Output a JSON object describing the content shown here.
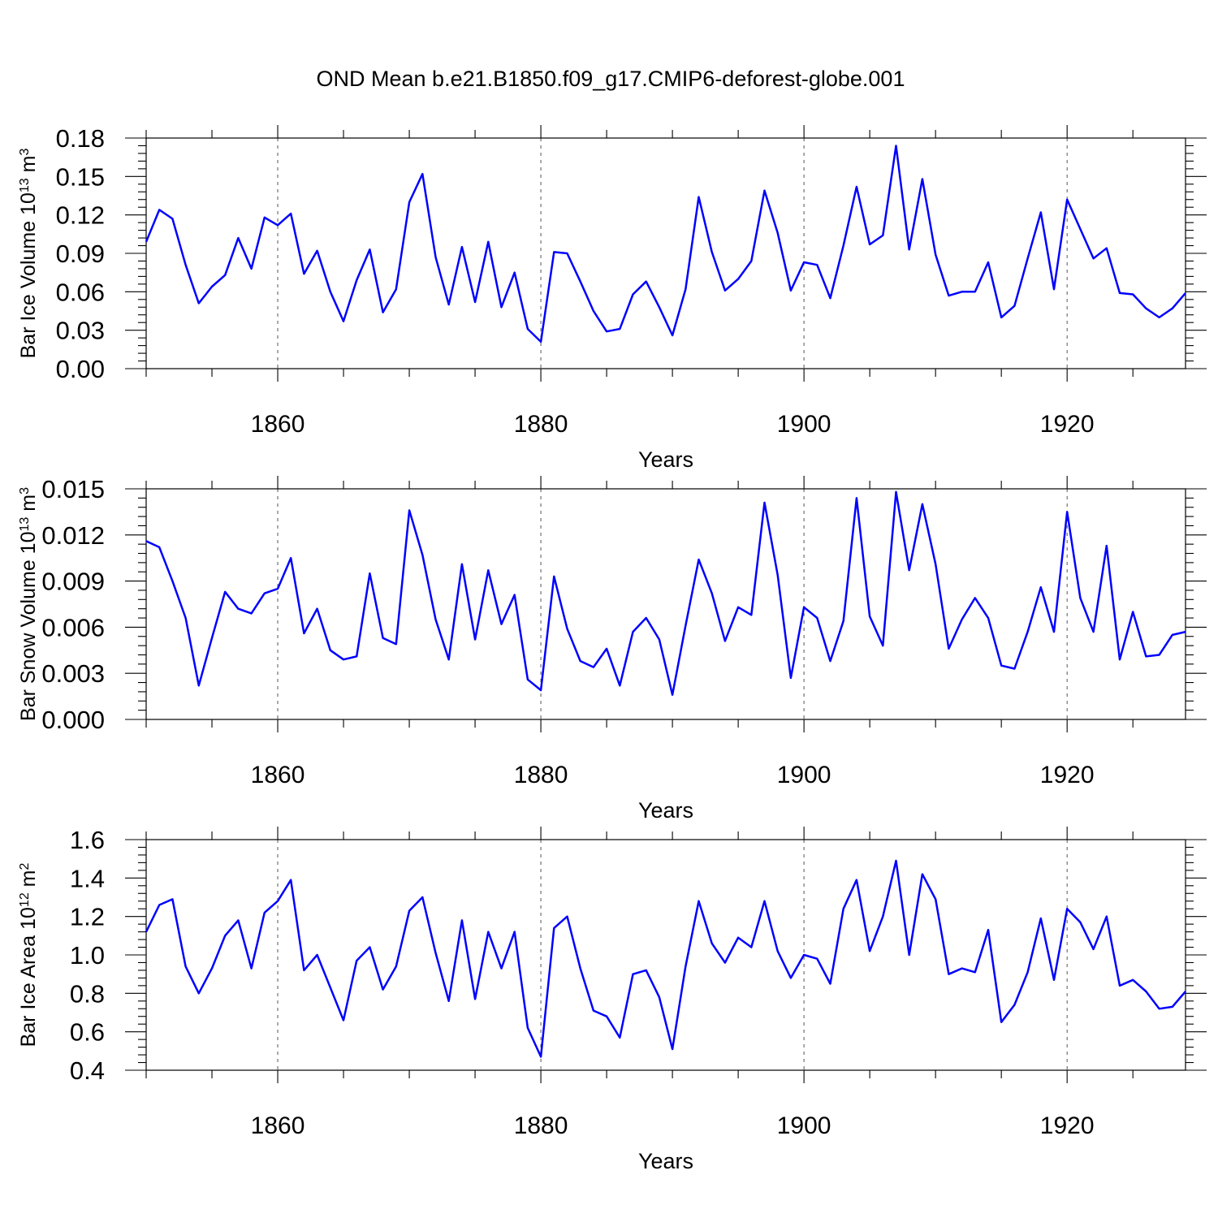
{
  "title": "OND Mean b.e21.B1850.f09_g17.CMIP6-deforest-globe.001",
  "colors": {
    "series": "#0000ff",
    "axis": "#000000",
    "grid": "#555555"
  },
  "chart_data": [
    {
      "type": "line",
      "ylabel": "Bar Ice Volume 10",
      "ylabel_exp": "13",
      "ylabel_unit": " m",
      "ylabel_unit_exp": "3",
      "xlabel": "Years",
      "xlim": [
        1850,
        1929
      ],
      "ylim": [
        0,
        0.18
      ],
      "xticks": [
        1860,
        1880,
        1900,
        1920
      ],
      "xtick_labels": [
        "1860",
        "1880",
        "1900",
        "1920"
      ],
      "yticks": [
        0,
        0.03,
        0.06,
        0.09,
        0.12,
        0.15,
        0.18
      ],
      "ytick_labels": [
        "0.00",
        "0.03",
        "0.06",
        "0.09",
        "0.12",
        "0.15",
        "0.18"
      ],
      "grid": "dashed vertical at major x ticks",
      "x": [
        1850,
        1851,
        1852,
        1853,
        1854,
        1855,
        1856,
        1857,
        1858,
        1859,
        1860,
        1861,
        1862,
        1863,
        1864,
        1865,
        1866,
        1867,
        1868,
        1869,
        1870,
        1871,
        1872,
        1873,
        1874,
        1875,
        1876,
        1877,
        1878,
        1879,
        1880,
        1881,
        1882,
        1883,
        1884,
        1885,
        1886,
        1887,
        1888,
        1889,
        1890,
        1891,
        1892,
        1893,
        1894,
        1895,
        1896,
        1897,
        1898,
        1899,
        1900,
        1901,
        1902,
        1903,
        1904,
        1905,
        1906,
        1907,
        1908,
        1909,
        1910,
        1911,
        1912,
        1913,
        1914,
        1915,
        1916,
        1917,
        1918,
        1919,
        1920,
        1921,
        1922,
        1923,
        1924,
        1925,
        1926,
        1927,
        1928,
        1929
      ],
      "values": [
        0.099,
        0.124,
        0.117,
        0.081,
        0.051,
        0.064,
        0.073,
        0.102,
        0.078,
        0.118,
        0.112,
        0.121,
        0.074,
        0.092,
        0.06,
        0.037,
        0.069,
        0.093,
        0.044,
        0.062,
        0.13,
        0.152,
        0.087,
        0.05,
        0.095,
        0.052,
        0.099,
        0.048,
        0.075,
        0.031,
        0.021,
        0.091,
        0.09,
        0.068,
        0.045,
        0.029,
        0.031,
        0.058,
        0.068,
        0.048,
        0.026,
        0.062,
        0.134,
        0.091,
        0.061,
        0.07,
        0.084,
        0.139,
        0.106,
        0.061,
        0.083,
        0.081,
        0.055,
        0.096,
        0.142,
        0.097,
        0.104,
        0.174,
        0.093,
        0.148,
        0.089,
        0.057,
        0.06,
        0.06,
        0.083,
        0.04,
        0.049,
        0.086,
        0.122,
        0.062,
        0.132,
        0.109,
        0.086,
        0.094,
        0.059,
        0.058,
        0.047,
        0.04,
        0.047,
        0.059
      ]
    },
    {
      "type": "line",
      "ylabel": "Bar Snow Volume 10",
      "ylabel_exp": "13",
      "ylabel_unit": " m",
      "ylabel_unit_exp": "3",
      "xlabel": "Years",
      "xlim": [
        1850,
        1929
      ],
      "ylim": [
        0,
        0.015
      ],
      "xticks": [
        1860,
        1880,
        1900,
        1920
      ],
      "xtick_labels": [
        "1860",
        "1880",
        "1900",
        "1920"
      ],
      "yticks": [
        0,
        0.003,
        0.006,
        0.009,
        0.012,
        0.015
      ],
      "ytick_labels": [
        "0.000",
        "0.003",
        "0.006",
        "0.009",
        "0.012",
        "0.015"
      ],
      "grid": "dashed vertical at major x ticks",
      "x": [
        1850,
        1851,
        1852,
        1853,
        1854,
        1855,
        1856,
        1857,
        1858,
        1859,
        1860,
        1861,
        1862,
        1863,
        1864,
        1865,
        1866,
        1867,
        1868,
        1869,
        1870,
        1871,
        1872,
        1873,
        1874,
        1875,
        1876,
        1877,
        1878,
        1879,
        1880,
        1881,
        1882,
        1883,
        1884,
        1885,
        1886,
        1887,
        1888,
        1889,
        1890,
        1891,
        1892,
        1893,
        1894,
        1895,
        1896,
        1897,
        1898,
        1899,
        1900,
        1901,
        1902,
        1903,
        1904,
        1905,
        1906,
        1907,
        1908,
        1909,
        1910,
        1911,
        1912,
        1913,
        1914,
        1915,
        1916,
        1917,
        1918,
        1919,
        1920,
        1921,
        1922,
        1923,
        1924,
        1925,
        1926,
        1927,
        1928,
        1929
      ],
      "values": [
        0.0116,
        0.0112,
        0.009,
        0.0066,
        0.0022,
        0.0053,
        0.0083,
        0.0072,
        0.0069,
        0.0082,
        0.0085,
        0.0105,
        0.0056,
        0.0072,
        0.0045,
        0.0039,
        0.0041,
        0.0095,
        0.0053,
        0.0049,
        0.0136,
        0.0107,
        0.0065,
        0.0039,
        0.0101,
        0.0052,
        0.0097,
        0.0062,
        0.0081,
        0.0026,
        0.0019,
        0.0093,
        0.0059,
        0.0038,
        0.0034,
        0.0046,
        0.0022,
        0.0057,
        0.0066,
        0.0052,
        0.0016,
        0.0061,
        0.0104,
        0.0082,
        0.0051,
        0.0073,
        0.0068,
        0.0141,
        0.0094,
        0.0027,
        0.0073,
        0.0066,
        0.0038,
        0.0064,
        0.0144,
        0.0067,
        0.0048,
        0.0148,
        0.0097,
        0.014,
        0.0101,
        0.0046,
        0.0065,
        0.0079,
        0.0066,
        0.0035,
        0.0033,
        0.0057,
        0.0086,
        0.0057,
        0.0135,
        0.0079,
        0.0057,
        0.0113,
        0.0039,
        0.007,
        0.0041,
        0.0042,
        0.0055,
        0.0057
      ]
    },
    {
      "type": "line",
      "ylabel": "Bar Ice Area 10",
      "ylabel_exp": "12",
      "ylabel_unit": " m",
      "ylabel_unit_exp": "2",
      "xlabel": "Years",
      "xlim": [
        1850,
        1929
      ],
      "ylim": [
        0.4,
        1.6
      ],
      "xticks": [
        1860,
        1880,
        1900,
        1920
      ],
      "xtick_labels": [
        "1860",
        "1880",
        "1900",
        "1920"
      ],
      "yticks": [
        0.4,
        0.6,
        0.8,
        1.0,
        1.2,
        1.4,
        1.6
      ],
      "ytick_labels": [
        "0.4",
        "0.6",
        "0.8",
        "1.0",
        "1.2",
        "1.4",
        "1.6"
      ],
      "grid": "dashed vertical at major x ticks",
      "x": [
        1850,
        1851,
        1852,
        1853,
        1854,
        1855,
        1856,
        1857,
        1858,
        1859,
        1860,
        1861,
        1862,
        1863,
        1864,
        1865,
        1866,
        1867,
        1868,
        1869,
        1870,
        1871,
        1872,
        1873,
        1874,
        1875,
        1876,
        1877,
        1878,
        1879,
        1880,
        1881,
        1882,
        1883,
        1884,
        1885,
        1886,
        1887,
        1888,
        1889,
        1890,
        1891,
        1892,
        1893,
        1894,
        1895,
        1896,
        1897,
        1898,
        1899,
        1900,
        1901,
        1902,
        1903,
        1904,
        1905,
        1906,
        1907,
        1908,
        1909,
        1910,
        1911,
        1912,
        1913,
        1914,
        1915,
        1916,
        1917,
        1918,
        1919,
        1920,
        1921,
        1922,
        1923,
        1924,
        1925,
        1926,
        1927,
        1928,
        1929
      ],
      "values": [
        1.12,
        1.26,
        1.29,
        0.94,
        0.8,
        0.93,
        1.1,
        1.18,
        0.93,
        1.22,
        1.28,
        1.39,
        0.92,
        1.0,
        0.83,
        0.66,
        0.97,
        1.04,
        0.82,
        0.94,
        1.23,
        1.3,
        1.01,
        0.76,
        1.18,
        0.77,
        1.12,
        0.93,
        1.12,
        0.62,
        0.47,
        1.14,
        1.2,
        0.93,
        0.71,
        0.68,
        0.57,
        0.9,
        0.92,
        0.78,
        0.51,
        0.94,
        1.28,
        1.06,
        0.96,
        1.09,
        1.04,
        1.28,
        1.02,
        0.88,
        1.0,
        0.98,
        0.85,
        1.24,
        1.39,
        1.02,
        1.2,
        1.49,
        1.0,
        1.42,
        1.29,
        0.9,
        0.93,
        0.91,
        1.13,
        0.65,
        0.74,
        0.91,
        1.19,
        0.87,
        1.24,
        1.17,
        1.03,
        1.2,
        0.84,
        0.87,
        0.81,
        0.72,
        0.73,
        0.81
      ]
    }
  ]
}
